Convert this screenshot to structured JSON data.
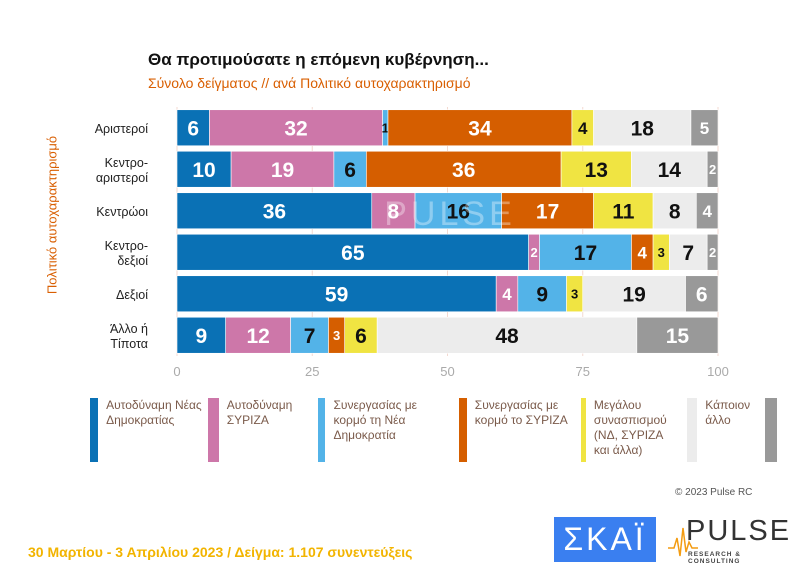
{
  "chart_data": {
    "type": "bar",
    "orientation": "horizontal",
    "stacked": true,
    "title": "Θα προτιμούσατε η επόμενη κυβέρνηση...",
    "subtitle": "Σύνολο δείγματος // ανά Πολιτικό αυτοχαρακτηρισμό",
    "ylabel": "Πολιτικό αυτοχαρακτηρισμό",
    "xlim": [
      0,
      100
    ],
    "xticks": [
      "0",
      "25",
      "50",
      "75",
      "100"
    ],
    "grid": true,
    "legend_position": "bottom",
    "categories": [
      "Αριστεροί",
      "Κεντρο-\nαριστεροί",
      "Κεντρώοι",
      "Κεντρο-\nδεξιοί",
      "Δεξιοί",
      "Άλλο ή\nΤίποτα"
    ],
    "series": [
      {
        "name": "Αυτοδύναμη Νέας Δημοκρατίας",
        "color": "#0a71b5",
        "label_color": "#ffffff",
        "values": [
          6,
          10,
          36,
          65,
          59,
          9
        ]
      },
      {
        "name": "Αυτοδύναμη ΣΥΡΙΖΑ",
        "color": "#cd77a9",
        "label_color": "#ffffff",
        "values": [
          32,
          19,
          8,
          2,
          4,
          12
        ]
      },
      {
        "name": "Συνεργασίας με κορμό τη Νέα Δημοκρατία",
        "color": "#53b3e8",
        "label_color": "#111111",
        "values": [
          1,
          6,
          16,
          17,
          9,
          7
        ]
      },
      {
        "name": "Συνεργασίας με κορμό το ΣΥΡΙΖΑ",
        "color": "#d55e00",
        "label_color": "#ffffff",
        "values": [
          34,
          36,
          17,
          4,
          0,
          3
        ]
      },
      {
        "name": "Μεγάλου συνασπισμού (ΝΔ, ΣΥΡΙΖΑ και άλλα)",
        "color": "#f0e442",
        "label_color": "#111111",
        "values": [
          4,
          13,
          11,
          3,
          3,
          6
        ]
      },
      {
        "name": "Κάποιον άλλο",
        "color": "#ececec",
        "label_color": "#111111",
        "values": [
          18,
          14,
          8,
          7,
          19,
          48
        ]
      },
      {
        "name": "",
        "color": "#999999",
        "label_color": "#ffffff",
        "values": [
          5,
          2,
          4,
          2,
          6,
          15
        ]
      }
    ]
  },
  "watermark": "PULSE",
  "copyright": "© 2023 Pulse RC",
  "footer": "30 Μαρτίου - 3  Απριλίου  2023  /  Δείγμα:  1.107 συνεντεύξεις",
  "logos": {
    "skai": "ΣΚΑΪ",
    "pulse": "PULSE",
    "pulse_sub": "RESEARCH & CONSULTING"
  }
}
